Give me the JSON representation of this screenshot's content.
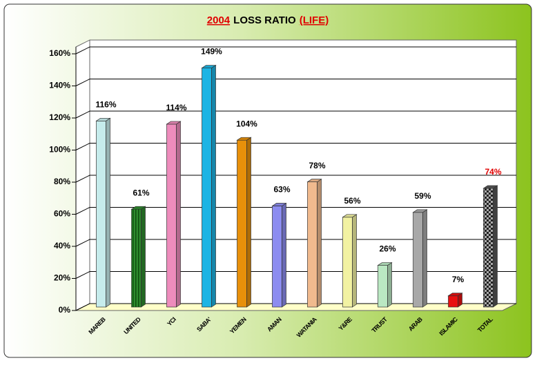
{
  "chart_data": {
    "type": "bar3d",
    "title": [
      "2004",
      "LOSS RATIO",
      "(LIFE)"
    ],
    "categories": [
      "MAREB",
      "UNITED",
      "YCI",
      "SABA'",
      "YEMEN",
      "AMAN",
      "WATANIA",
      "Y&RE",
      "TRUST",
      "ARAB",
      "ISLAMIC",
      "TOTAL"
    ],
    "values": [
      116,
      61,
      114,
      149,
      104,
      63,
      78,
      56,
      26,
      59,
      7,
      74
    ],
    "value_labels": [
      "116%",
      "61%",
      "114%",
      "149%",
      "104%",
      "63%",
      "78%",
      "56%",
      "26%",
      "59%",
      "7%",
      "74%"
    ],
    "colors": [
      "#c6ecec",
      "#2e8b2e",
      "#ee8cbc",
      "#1cb4e4",
      "#e8900a",
      "#8c8cf0",
      "#f0ba8e",
      "#f2f2a2",
      "#bae8c2",
      "#a8a8a8",
      "#e81010",
      "#555555"
    ],
    "ylim": [
      0,
      160
    ],
    "yticks": [
      {
        "value": 0,
        "label": "0%"
      },
      {
        "value": 20,
        "label": "20%"
      },
      {
        "value": 40,
        "label": "40%"
      },
      {
        "value": 60,
        "label": "60%"
      },
      {
        "value": 80,
        "label": "80%"
      },
      {
        "value": 100,
        "label": "100%"
      },
      {
        "value": 120,
        "label": "120%"
      },
      {
        "value": 140,
        "label": "140%"
      },
      {
        "value": 160,
        "label": "160%"
      }
    ],
    "grid": true
  }
}
